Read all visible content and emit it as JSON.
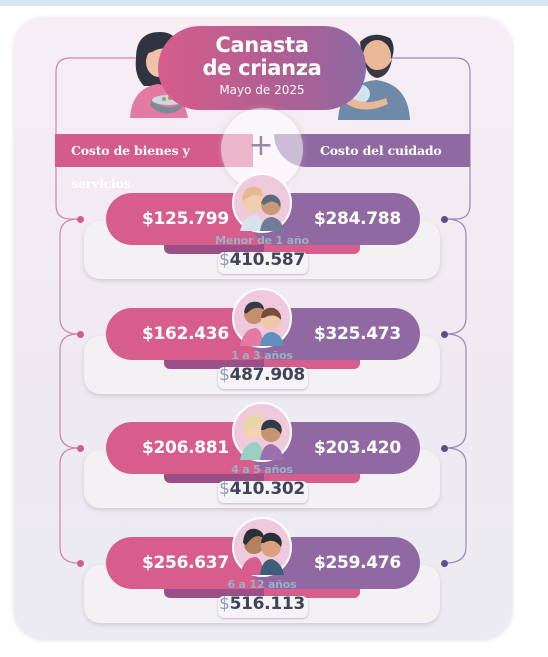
{
  "header": {
    "title_line1": "Canasta",
    "title_line2": "de crianza",
    "date": "Mayo de 2025"
  },
  "labels": {
    "left": "Costo de bienes y servicios",
    "right": "Costo del cuidado",
    "plus": "+"
  },
  "colors": {
    "pink": "#d65d8c",
    "purple": "#9169a2",
    "total_text": "#3f4556"
  },
  "rows": [
    {
      "age": "Menor de 1 año",
      "goods": "$125.799",
      "care": "$284.788",
      "currency": "$",
      "total": "410.587"
    },
    {
      "age": "1 a 3 años",
      "goods": "$162.436",
      "care": "$325.473",
      "currency": "$",
      "total": "487.908"
    },
    {
      "age": "4 a 5 años",
      "goods": "$206.881",
      "care": "$203.420",
      "currency": "$",
      "total": "410.302"
    },
    {
      "age": "6 a 12 años",
      "goods": "$256.637",
      "care": "$259.476",
      "currency": "$",
      "total": "516.113"
    }
  ],
  "illustrations": {
    "left": "woman-cooking-illustration",
    "right": "man-holding-baby-illustration"
  }
}
